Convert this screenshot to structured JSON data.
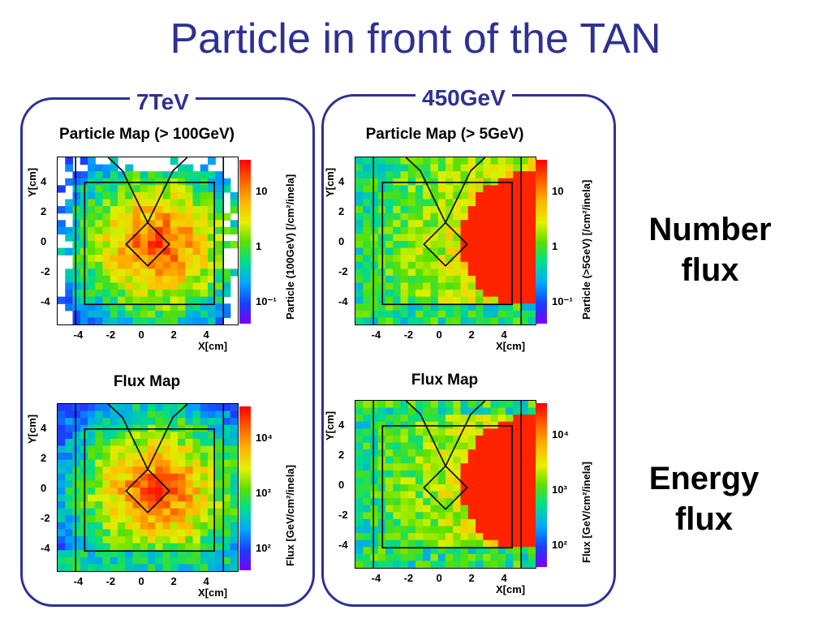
{
  "slide": {
    "title": "Particle in front of the TAN",
    "labels": {
      "number_flux": "Number\nflux",
      "energy_flux": "Energy\nflux"
    }
  },
  "groups": [
    {
      "label": "7TeV",
      "panels": [
        {
          "title": "Particle Map (> 100GeV)",
          "ylabel": "Y[cm]",
          "xlabel": "X[cm]",
          "colorbar_label": "Particle (100GeV) [/cm²/inela]",
          "colorbar_ticks": [
            "10",
            "1",
            "10⁻¹"
          ],
          "heat_style": "center"
        },
        {
          "title": "Flux Map",
          "ylabel": "Y[cm]",
          "xlabel": "X[cm]",
          "colorbar_label": "Flux [GeV/cm²/inela]",
          "colorbar_ticks": [
            "10⁴",
            "10³",
            "10²"
          ],
          "heat_style": "center"
        }
      ]
    },
    {
      "label": "450GeV",
      "panels": [
        {
          "title": "Particle Map (> 5GeV)",
          "ylabel": "Y[cm]",
          "xlabel": "X[cm]",
          "colorbar_label": "Particle (>5GeV) [/cm²/inela]",
          "colorbar_ticks": [
            "10",
            "1",
            "10⁻¹"
          ],
          "heat_style": "right"
        },
        {
          "title": "Flux Map",
          "ylabel": "Y[cm]",
          "xlabel": "X[cm]",
          "colorbar_label": "Flux [GeV/cm²/inela]",
          "colorbar_ticks": [
            "10⁴",
            "10³",
            "10²"
          ],
          "heat_style": "right"
        }
      ]
    }
  ],
  "axes": {
    "xticks": [
      "-4",
      "-2",
      "0",
      "2",
      "4"
    ],
    "yticks": [
      "4",
      "2",
      "0",
      "-2",
      "-4"
    ]
  }
}
